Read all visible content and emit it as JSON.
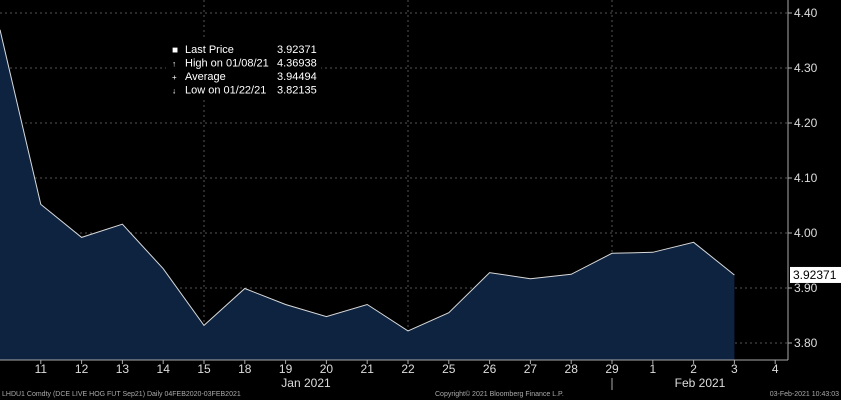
{
  "chart_data": {
    "type": "area",
    "x": [
      "10",
      "11",
      "12",
      "13",
      "14",
      "15",
      "18",
      "19",
      "20",
      "21",
      "22",
      "25",
      "26",
      "27",
      "28",
      "29",
      "1",
      "2",
      "3"
    ],
    "values": [
      4.36938,
      4.052,
      3.992,
      4.016,
      3.935,
      3.832,
      3.899,
      3.87,
      3.848,
      3.87,
      3.822,
      3.855,
      3.928,
      3.917,
      3.925,
      3.963,
      3.965,
      3.983,
      3.92371
    ],
    "x_tick_labels": [
      "11",
      "12",
      "13",
      "14",
      "15",
      "18",
      "19",
      "20",
      "21",
      "22",
      "25",
      "26",
      "27",
      "28",
      "29",
      "1",
      "2",
      "3",
      "4"
    ],
    "months": [
      "Jan 2021",
      "Feb 2021"
    ],
    "y_tick_labels": [
      "4.40",
      "4.30",
      "4.20",
      "4.10",
      "4.00",
      "3.90",
      "3.80"
    ],
    "ylim": [
      3.77,
      4.42
    ],
    "last_price_label": "3.92371",
    "line_color": "#d9d9d9",
    "fill_color": "#0d2340",
    "grid": true,
    "legend_position": "top-left",
    "legend": [
      {
        "marker": "■",
        "label": "Last Price",
        "value": "3.92371"
      },
      {
        "marker": "↑",
        "label": "High on 01/08/21",
        "value": "4.36938"
      },
      {
        "marker": "+",
        "label": "Average",
        "value": "3.94494"
      },
      {
        "marker": "↓",
        "label": "Low on 01/22/21",
        "value": "3.82135"
      }
    ]
  },
  "footer": {
    "left": "LHDU1 Comdty (DCE LIVE HOG FUT  Sep21)  Daily 04FEB2020-03FEB2021",
    "center": "Copyright© 2021 Bloomberg Finance L.P.",
    "right": "03-Feb-2021 10:43:03"
  }
}
